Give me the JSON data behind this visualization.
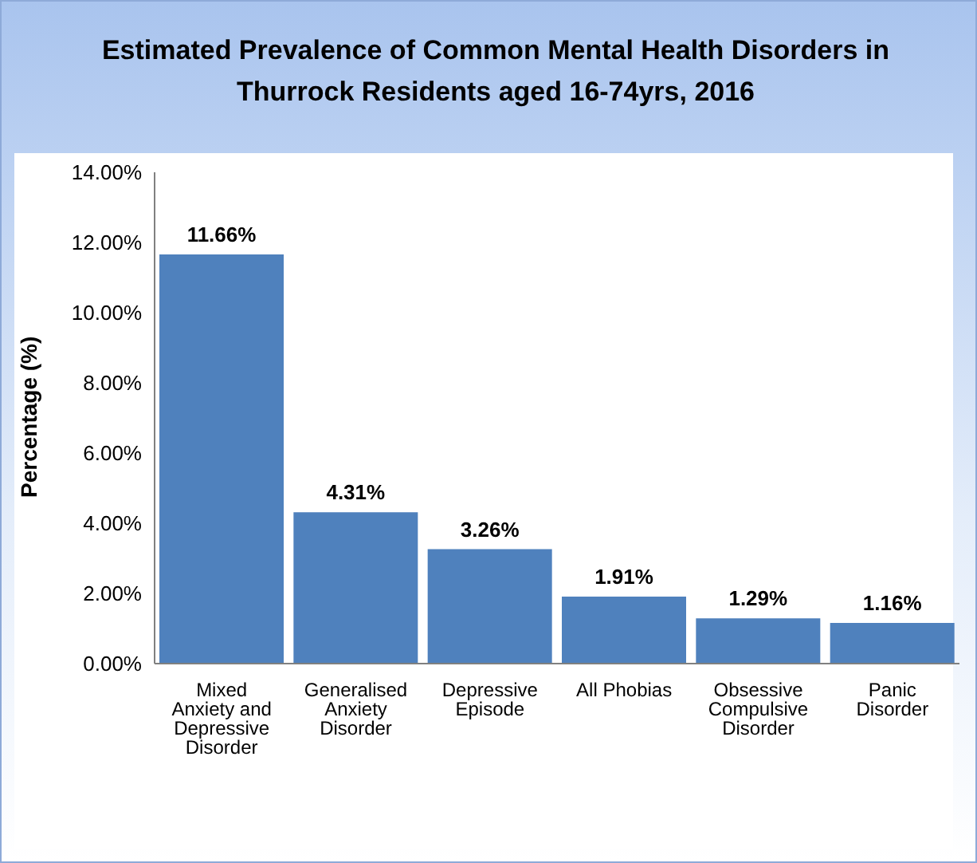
{
  "chart_data": {
    "type": "bar",
    "title": "Estimated Prevalence of Common Mental Health Disorders in Thurrock Residents aged 16-74yrs, 2016",
    "ylabel": "Percentage (%)",
    "categories": [
      "Mixed Anxiety and Depressive Disorder",
      "Generalised Anxiety Disorder",
      "Depressive Episode",
      "All Phobias",
      "Obsessive Compulsive Disorder",
      "Panic Disorder"
    ],
    "values": [
      11.66,
      4.31,
      3.26,
      1.91,
      1.29,
      1.16
    ],
    "value_labels": [
      "11.66%",
      "4.31%",
      "3.26%",
      "1.91%",
      "1.29%",
      "1.16%"
    ],
    "color": "#4f81bd",
    "ylim": [
      0,
      14
    ],
    "yticks": [
      {
        "value": 0,
        "label": "0.00%"
      },
      {
        "value": 2,
        "label": "2.00%"
      },
      {
        "value": 4,
        "label": "4.00%"
      },
      {
        "value": 6,
        "label": "6.00%"
      },
      {
        "value": 8,
        "label": "8.00%"
      },
      {
        "value": 10,
        "label": "10.00%"
      },
      {
        "value": 12,
        "label": "12.00%"
      },
      {
        "value": 14,
        "label": "14.00%"
      }
    ],
    "grid": false,
    "legend": false
  }
}
